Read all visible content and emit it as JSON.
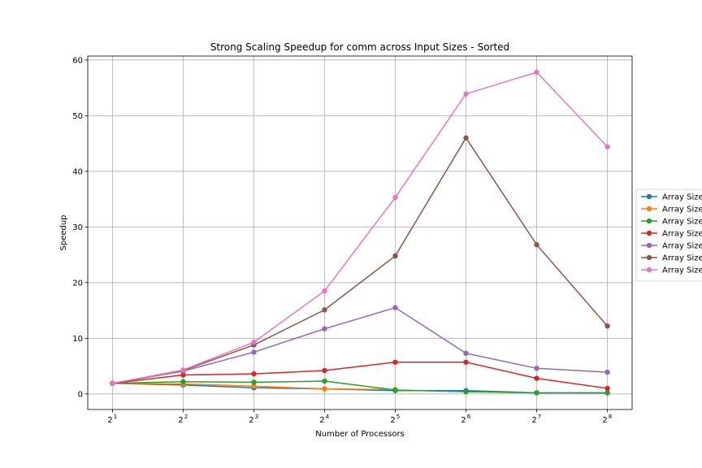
{
  "chart_data": {
    "type": "line",
    "title": "Strong Scaling Speedup for comm across Input Sizes - Sorted",
    "xlabel": "Number of Processors",
    "ylabel": "Speedup",
    "x_scale": "log2",
    "x": [
      2,
      4,
      8,
      16,
      32,
      64,
      128,
      256
    ],
    "x_tick_base": "2",
    "x_tick_exponents": [
      "1",
      "2",
      "3",
      "4",
      "5",
      "6",
      "7",
      "8"
    ],
    "y_ticks": [
      "0",
      "10",
      "20",
      "30",
      "40",
      "50",
      "60"
    ],
    "ylim": [
      -2.8,
      60.7
    ],
    "grid": true,
    "legend_position": "center-right",
    "series": [
      {
        "name": "Array Size",
        "color": "#1f77b4",
        "values": [
          1.9,
          1.6,
          1.1,
          0.9,
          0.6,
          0.6,
          0.2,
          0.2
        ]
      },
      {
        "name": "Array Size",
        "color": "#ff7f0e",
        "values": [
          1.9,
          1.8,
          1.4,
          0.9,
          0.8,
          null,
          null,
          null
        ]
      },
      {
        "name": "Array Size",
        "color": "#2ca02c",
        "values": [
          1.9,
          2.2,
          2.1,
          2.3,
          0.7,
          0.4,
          0.2,
          0.2
        ]
      },
      {
        "name": "Array Size",
        "color": "#d62728",
        "values": [
          1.9,
          3.4,
          3.6,
          4.2,
          5.7,
          5.7,
          2.8,
          1.0
        ]
      },
      {
        "name": "Array Size",
        "color": "#9467bd",
        "values": [
          1.9,
          4.1,
          7.5,
          11.7,
          15.5,
          7.3,
          4.6,
          3.9
        ]
      },
      {
        "name": "Array Size",
        "color": "#8c564b",
        "values": [
          1.9,
          4.2,
          8.8,
          15.1,
          24.8,
          46.0,
          26.8,
          12.2
        ]
      },
      {
        "name": "Array Size",
        "color": "#e377c2",
        "values": [
          1.9,
          4.3,
          9.3,
          18.5,
          35.3,
          53.9,
          57.8,
          44.4
        ]
      }
    ]
  }
}
